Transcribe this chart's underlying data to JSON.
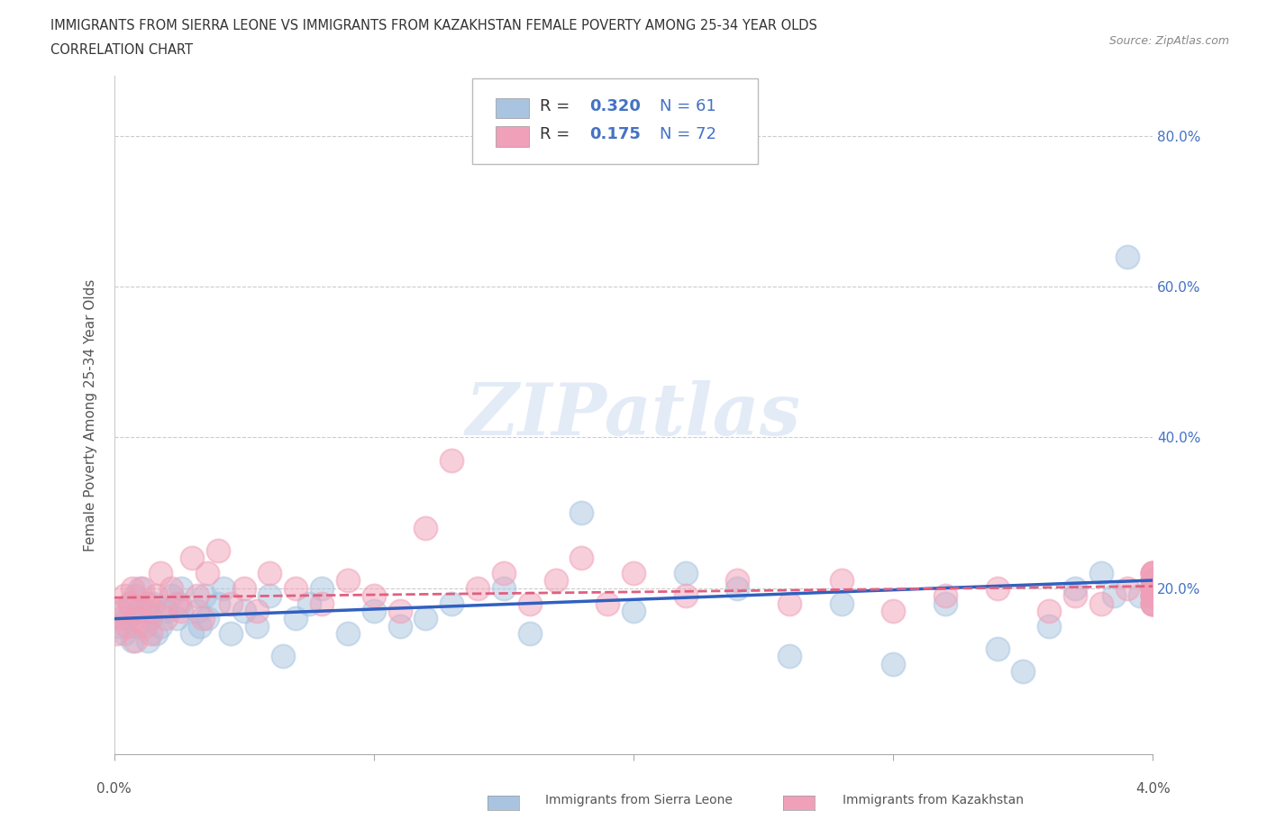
{
  "title_line1": "IMMIGRANTS FROM SIERRA LEONE VS IMMIGRANTS FROM KAZAKHSTAN FEMALE POVERTY AMONG 25-34 YEAR OLDS",
  "title_line2": "CORRELATION CHART",
  "source_text": "Source: ZipAtlas.com",
  "ylabel": "Female Poverty Among 25-34 Year Olds",
  "xlim": [
    0.0,
    0.04
  ],
  "ylim": [
    -0.02,
    0.88
  ],
  "xtick_labels": [
    "0.0%",
    "4.0%"
  ],
  "ytick_positions": [
    0.2,
    0.4,
    0.6,
    0.8
  ],
  "ytick_labels": [
    "20.0%",
    "40.0%",
    "60.0%",
    "80.0%"
  ],
  "sierra_leone_color": "#a8c4e0",
  "kazakhstan_color": "#f0a0b8",
  "sierra_leone_line_color": "#3060c0",
  "kazakhstan_line_color": "#e06080",
  "sierra_leone_R": 0.32,
  "sierra_leone_N": 61,
  "kazakhstan_R": 0.175,
  "kazakhstan_N": 72,
  "watermark": "ZIPatlas",
  "sl_x": [
    0.0002,
    0.0003,
    0.0004,
    0.0005,
    0.0006,
    0.0007,
    0.0008,
    0.0009,
    0.001,
    0.0012,
    0.0013,
    0.0014,
    0.0015,
    0.0016,
    0.0018,
    0.002,
    0.0022,
    0.0024,
    0.0025,
    0.0026,
    0.003,
    0.0032,
    0.0033,
    0.0035,
    0.0036,
    0.004,
    0.0042,
    0.0045,
    0.005,
    0.0055,
    0.006,
    0.0065,
    0.007,
    0.0075,
    0.008,
    0.009,
    0.01,
    0.011,
    0.012,
    0.013,
    0.015,
    0.016,
    0.018,
    0.02,
    0.022,
    0.024,
    0.026,
    0.028,
    0.03,
    0.032,
    0.034,
    0.035,
    0.036,
    0.037,
    0.038,
    0.0385,
    0.039,
    0.0395,
    0.04,
    0.04,
    0.04
  ],
  "sl_y": [
    0.15,
    0.17,
    0.14,
    0.16,
    0.18,
    0.13,
    0.19,
    0.15,
    0.2,
    0.17,
    0.13,
    0.16,
    0.18,
    0.14,
    0.15,
    0.17,
    0.19,
    0.16,
    0.18,
    0.2,
    0.14,
    0.17,
    0.15,
    0.19,
    0.16,
    0.18,
    0.2,
    0.14,
    0.17,
    0.15,
    0.19,
    0.11,
    0.16,
    0.18,
    0.2,
    0.14,
    0.17,
    0.15,
    0.16,
    0.18,
    0.2,
    0.14,
    0.3,
    0.17,
    0.22,
    0.2,
    0.11,
    0.18,
    0.1,
    0.18,
    0.12,
    0.09,
    0.15,
    0.2,
    0.22,
    0.19,
    0.64,
    0.19,
    0.18,
    0.2,
    0.19
  ],
  "kz_x": [
    0.0001,
    0.0002,
    0.0003,
    0.0004,
    0.0005,
    0.0006,
    0.0007,
    0.0008,
    0.0009,
    0.001,
    0.0011,
    0.0012,
    0.0013,
    0.0014,
    0.0015,
    0.0016,
    0.0018,
    0.002,
    0.0022,
    0.0024,
    0.0026,
    0.003,
    0.0032,
    0.0034,
    0.0036,
    0.004,
    0.0045,
    0.005,
    0.0055,
    0.006,
    0.007,
    0.008,
    0.009,
    0.01,
    0.011,
    0.012,
    0.013,
    0.014,
    0.015,
    0.016,
    0.017,
    0.018,
    0.019,
    0.02,
    0.022,
    0.024,
    0.026,
    0.028,
    0.03,
    0.032,
    0.034,
    0.036,
    0.037,
    0.038,
    0.039,
    0.04,
    0.04,
    0.04,
    0.04,
    0.04,
    0.04,
    0.04,
    0.04,
    0.04,
    0.04,
    0.04,
    0.04,
    0.04,
    0.04,
    0.04,
    0.04,
    0.04
  ],
  "kz_y": [
    0.14,
    0.17,
    0.16,
    0.19,
    0.15,
    0.18,
    0.2,
    0.13,
    0.16,
    0.17,
    0.2,
    0.15,
    0.18,
    0.14,
    0.17,
    0.19,
    0.22,
    0.16,
    0.2,
    0.18,
    0.17,
    0.24,
    0.19,
    0.16,
    0.22,
    0.25,
    0.18,
    0.2,
    0.17,
    0.22,
    0.2,
    0.18,
    0.21,
    0.19,
    0.17,
    0.28,
    0.37,
    0.2,
    0.22,
    0.18,
    0.21,
    0.24,
    0.18,
    0.22,
    0.19,
    0.21,
    0.18,
    0.21,
    0.17,
    0.19,
    0.2,
    0.17,
    0.19,
    0.18,
    0.2,
    0.22,
    0.2,
    0.19,
    0.18,
    0.21,
    0.22,
    0.19,
    0.21,
    0.18,
    0.2,
    0.22,
    0.19,
    0.21,
    0.18,
    0.2,
    0.22,
    0.19
  ]
}
